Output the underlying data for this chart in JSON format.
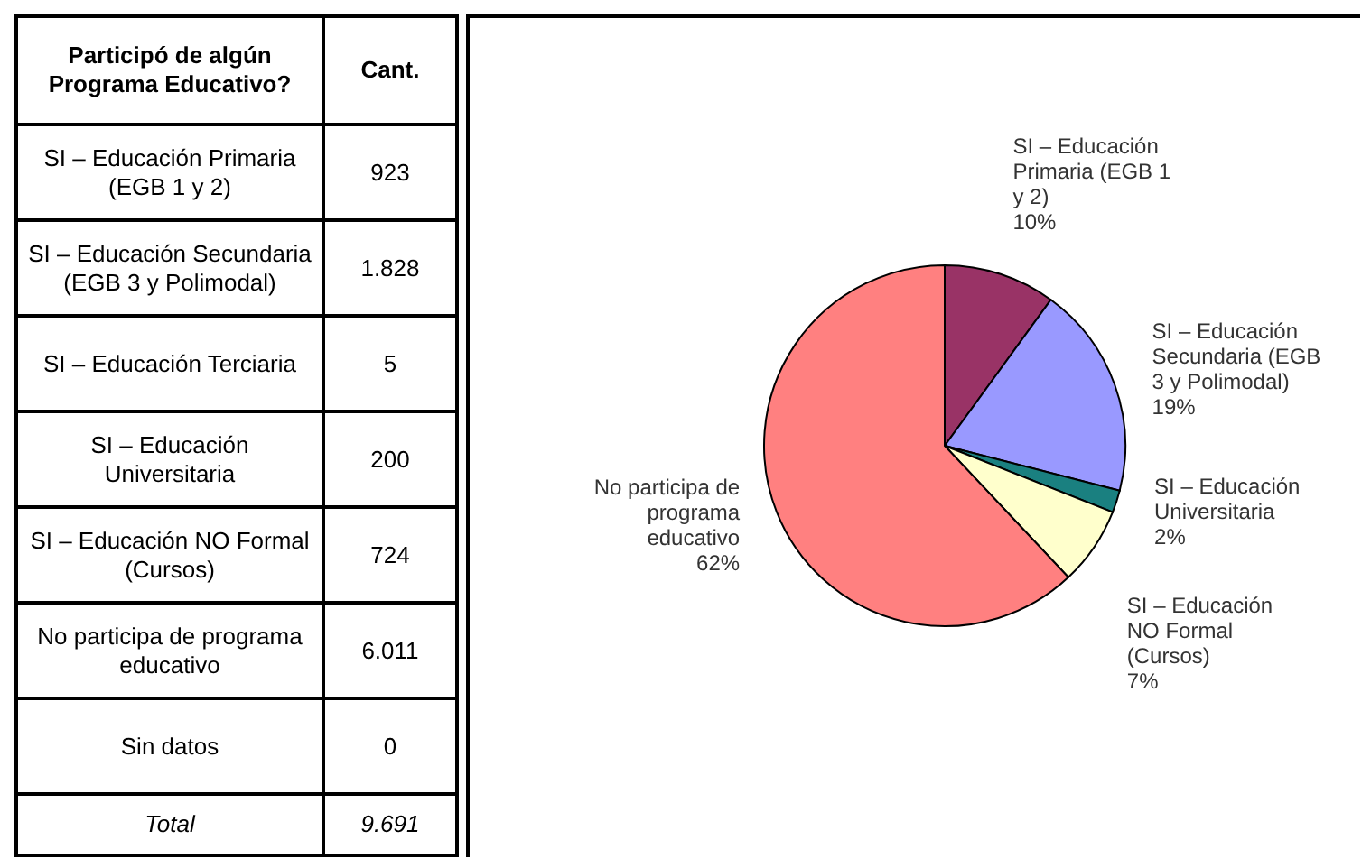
{
  "chart_data": [
    {
      "type": "other",
      "categories": [
        "SI – Educación Primaria (EGB 1 y 2)",
        "SI – Educación Secundaria (EGB 3 y Polimodal)",
        "SI – Educación Terciaria",
        "SI – Educación Universitaria",
        "SI – Educación NO Formal (Cursos)",
        "No participa de programa educativo",
        "Sin datos"
      ],
      "values": [
        923,
        1828,
        5,
        200,
        724,
        6011,
        0
      ],
      "value_labels": [
        "923",
        "1.828",
        "5",
        "200",
        "724",
        "6.011",
        "0"
      ],
      "totals": [
        "9.691"
      ],
      "annotations": [
        "Participó de algún Programa Educativo?",
        "Cant.",
        "Total"
      ]
    },
    {
      "type": "pie",
      "categories": [
        "SI – Educación Primaria (EGB 1 y 2)",
        "SI – Educación Secundaria (EGB 3 y Polimodal)",
        "SI – Educación Universitaria",
        "SI – Educación NO Formal (Cursos)",
        "No participa de programa educativo"
      ],
      "values": [
        10,
        19,
        2,
        7,
        62
      ],
      "colors": [
        "#993366",
        "#9999ff",
        "#1a8080",
        "#ffffcc",
        "#ff8080"
      ],
      "value_labels": [
        "10%",
        "19%",
        "2%",
        "7%",
        "62%"
      ]
    }
  ]
}
